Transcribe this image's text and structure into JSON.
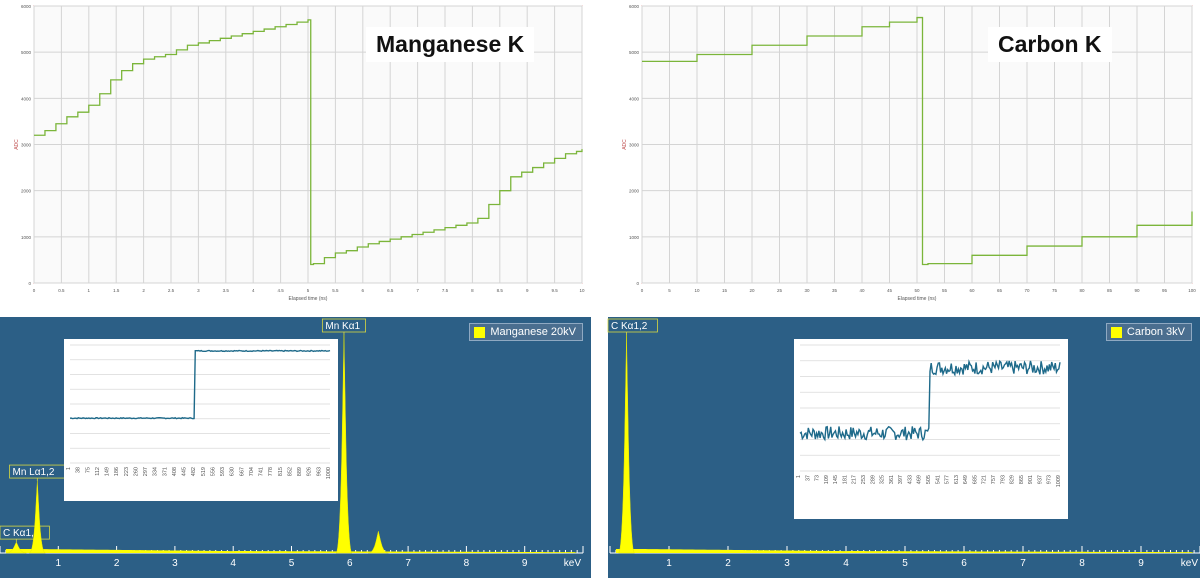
{
  "chart_data": [
    {
      "type": "line",
      "title": "Manganese K",
      "xlabel": "Elapsed time (ns)",
      "ylabel": "ADC",
      "xlim": [
        0,
        10
      ],
      "ylim": [
        0,
        6000
      ],
      "xticks": [
        "0",
        "0.5",
        "1",
        "1.5",
        "2",
        "2.5",
        "3",
        "3.5",
        "4",
        "4.5",
        "5",
        "5.5",
        "6",
        "6.5",
        "7",
        "7.5",
        "8",
        "8.5",
        "9",
        "9.5",
        "10"
      ],
      "yticks": [
        "0",
        "1000",
        "2000",
        "3000",
        "4000",
        "5000",
        "6000"
      ],
      "grid": true,
      "series": [
        {
          "x": [
            0,
            0.2,
            0.4,
            0.6,
            0.8,
            1.0,
            1.2,
            1.4,
            1.6,
            1.8,
            2.0,
            2.2,
            2.4,
            2.6,
            2.8,
            3.0,
            3.2,
            3.4,
            3.6,
            3.8,
            4.0,
            4.2,
            4.4,
            4.6,
            4.8,
            5.0,
            5.05,
            5.1,
            5.3,
            5.5,
            5.7,
            5.9,
            6.1,
            6.3,
            6.5,
            6.7,
            6.9,
            7.1,
            7.3,
            7.5,
            7.7,
            7.9,
            8.1,
            8.3,
            8.5,
            8.7,
            8.9,
            9.1,
            9.3,
            9.5,
            9.7,
            9.9,
            10.0
          ],
          "y": [
            3200,
            3300,
            3450,
            3600,
            3700,
            3850,
            4100,
            4400,
            4600,
            4750,
            4850,
            4900,
            4950,
            5050,
            5150,
            5200,
            5250,
            5300,
            5350,
            5400,
            5450,
            5500,
            5550,
            5600,
            5650,
            5700,
            400,
            420,
            550,
            650,
            700,
            780,
            850,
            900,
            950,
            1000,
            1050,
            1100,
            1150,
            1200,
            1250,
            1300,
            1400,
            1700,
            2000,
            2300,
            2400,
            2500,
            2600,
            2700,
            2800,
            2850,
            2900
          ]
        }
      ]
    },
    {
      "type": "line",
      "title": "Carbon K",
      "xlabel": "Elapsed time (ns)",
      "ylabel": "ADC",
      "xlim": [
        0,
        100
      ],
      "ylim": [
        0,
        6000
      ],
      "xticks": [
        "0",
        "5",
        "10",
        "15",
        "20",
        "25",
        "30",
        "35",
        "40",
        "45",
        "50",
        "55",
        "60",
        "65",
        "70",
        "75",
        "80",
        "85",
        "90",
        "95",
        "100"
      ],
      "yticks": [
        "0",
        "1000",
        "2000",
        "3000",
        "4000",
        "5000",
        "6000"
      ],
      "grid": true,
      "series": [
        {
          "x": [
            0,
            10,
            20,
            30,
            40,
            45,
            50,
            51,
            52,
            60,
            70,
            80,
            90,
            100
          ],
          "y": [
            4800,
            4950,
            5150,
            5350,
            5550,
            5650,
            5750,
            400,
            420,
            600,
            800,
            1000,
            1250,
            1550
          ]
        }
      ]
    },
    {
      "type": "bar",
      "title": "",
      "legend": "Manganese 20kV",
      "xlabel": "keV",
      "xlim": [
        0,
        10
      ],
      "xticks": [
        "1",
        "2",
        "3",
        "4",
        "5",
        "6",
        "7",
        "8",
        "9"
      ],
      "peaks": [
        {
          "label": "C Kα1,2",
          "kev": 0.28,
          "height": 0.05
        },
        {
          "label": "Mn Lα1,2",
          "kev": 0.64,
          "height": 0.33
        },
        {
          "label": "Mn Kα1",
          "kev": 5.9,
          "height": 1.0
        },
        {
          "label": "",
          "kev": 6.49,
          "height": 0.1
        }
      ],
      "inset": {
        "type": "line",
        "xticks": [
          "1",
          "38",
          "75",
          "112",
          "149",
          "186",
          "223",
          "260",
          "297",
          "334",
          "371",
          "408",
          "445",
          "482",
          "519",
          "556",
          "593",
          "630",
          "667",
          "704",
          "741",
          "778",
          "815",
          "852",
          "889",
          "926",
          "963",
          "1000"
        ],
        "low": 0.38,
        "high": 0.95,
        "step_at": 482
      }
    },
    {
      "type": "bar",
      "title": "",
      "legend": "Carbon 3kV",
      "xlabel": "keV",
      "xlim": [
        0,
        10
      ],
      "xticks": [
        "1",
        "2",
        "3",
        "4",
        "5",
        "6",
        "7",
        "8",
        "9"
      ],
      "peaks": [
        {
          "label": "C Kα1,2",
          "kev": 0.28,
          "height": 1.0
        }
      ],
      "inset": {
        "type": "line",
        "xticks": [
          "1",
          "37",
          "73",
          "109",
          "145",
          "181",
          "217",
          "253",
          "289",
          "325",
          "361",
          "397",
          "433",
          "469",
          "505",
          "541",
          "577",
          "613",
          "649",
          "685",
          "721",
          "757",
          "793",
          "829",
          "865",
          "901",
          "937",
          "973",
          "1009"
        ],
        "low": 0.3,
        "high": 0.82,
        "step_at": 505
      }
    }
  ]
}
